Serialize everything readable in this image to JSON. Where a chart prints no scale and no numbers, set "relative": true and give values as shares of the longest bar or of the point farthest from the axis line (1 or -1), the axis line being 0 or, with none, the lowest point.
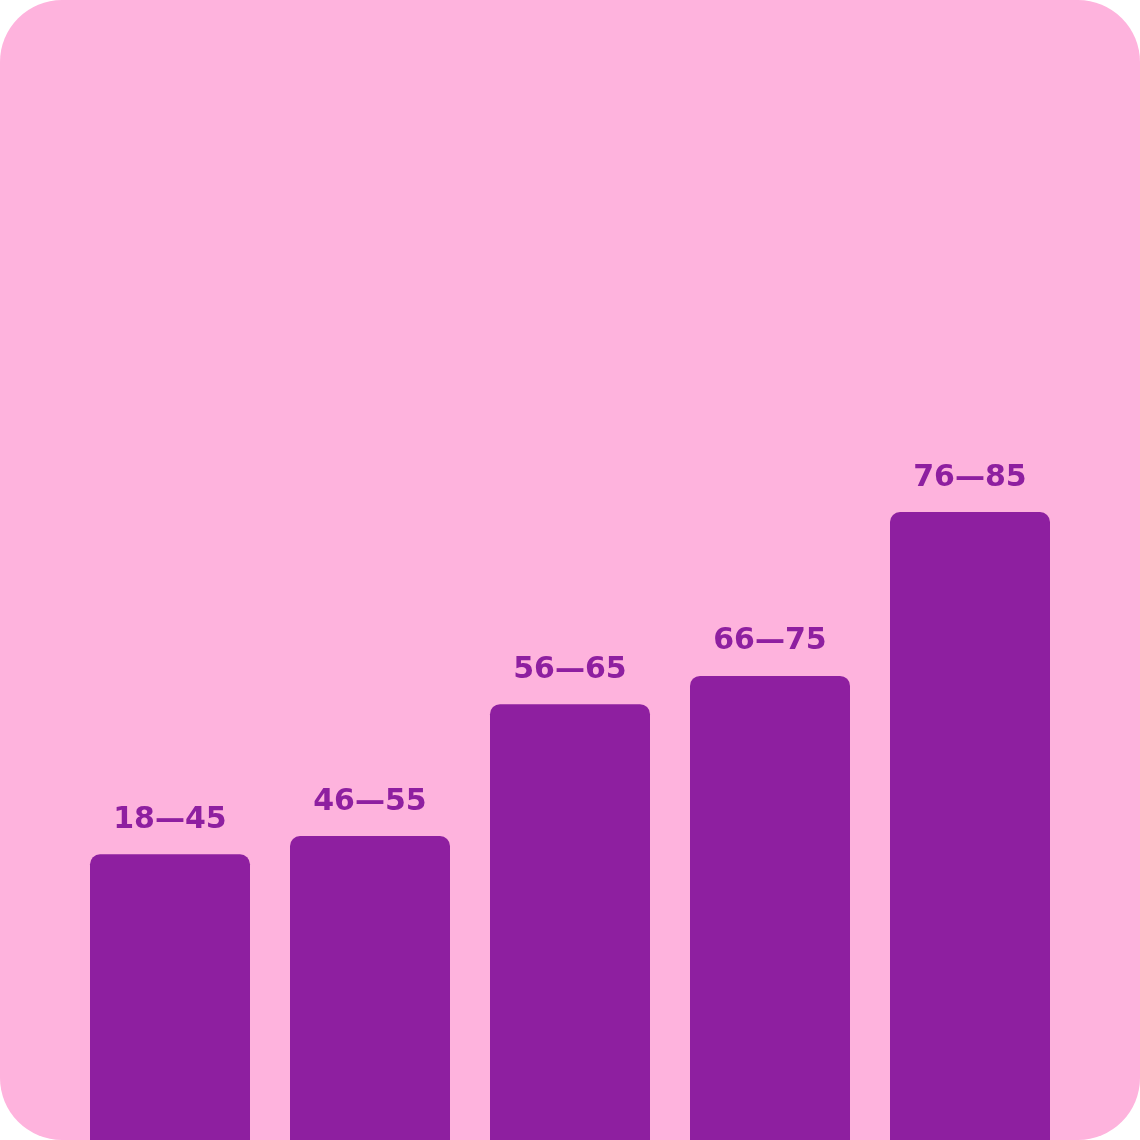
{
  "chart_data": {
    "type": "bar",
    "relative": true,
    "categories": [
      "18—45",
      "46—55",
      "56—65",
      "66—75",
      "76—85"
    ],
    "values": [
      0.455,
      0.484,
      0.694,
      0.739,
      1
    ],
    "color": "#8e1fa0"
  }
}
